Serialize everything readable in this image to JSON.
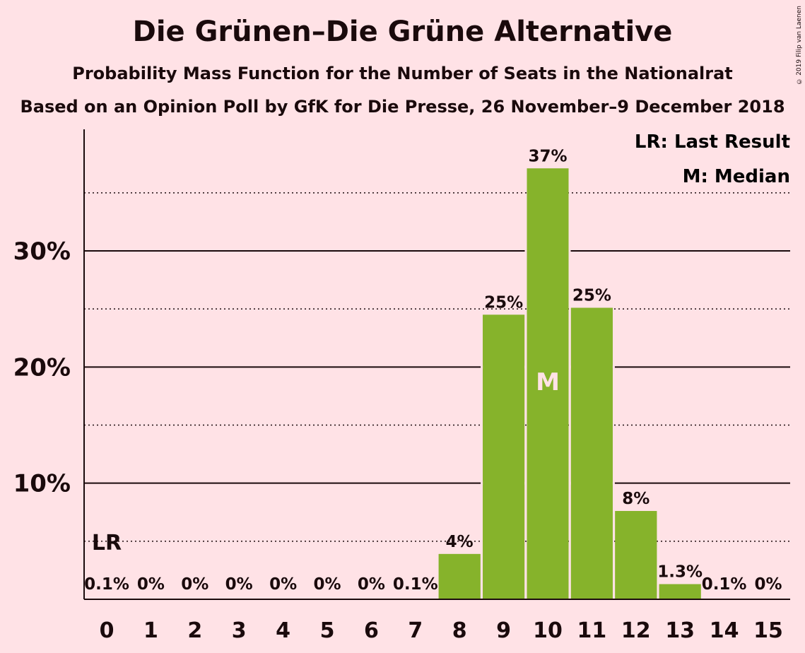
{
  "title": "Die Grünen–Die Grüne Alternative",
  "subtitle": "Probability Mass Function for the Number of Seats in the Nationalrat",
  "subtitle2": "Based on an Opinion Poll by GfK for Die Presse, 26 November–9 December 2018",
  "copyright": "© 2019 Filip van Laenen",
  "legend": {
    "last_result": "LR: Last Result",
    "median": "M: Median"
  },
  "colors": {
    "bar": "#86B32B",
    "background": "#FFE2E6",
    "text": "#1a0a0c",
    "median_marker": "#FFE2E6"
  },
  "chart_data": {
    "type": "bar",
    "categories": [
      "0",
      "1",
      "2",
      "3",
      "4",
      "5",
      "6",
      "7",
      "8",
      "9",
      "10",
      "11",
      "12",
      "13",
      "14",
      "15"
    ],
    "values": [
      0.1,
      0,
      0,
      0,
      0,
      0,
      0,
      0.1,
      3.9,
      24.5,
      37.1,
      25.1,
      7.6,
      1.3,
      0.1,
      0
    ],
    "data_labels": [
      "0.1%",
      "0%",
      "0%",
      "0%",
      "0%",
      "0%",
      "0%",
      "0.1%",
      "4%",
      "25%",
      "37%",
      "25%",
      "8%",
      "1.3%",
      "0.1%",
      "0%"
    ],
    "ylim": [
      0,
      40
    ],
    "yticks": [
      10,
      20,
      30
    ],
    "ytick_labels": [
      "10%",
      "20%",
      "30%"
    ],
    "minor_gridlines": [
      5,
      15,
      25,
      35
    ],
    "grid": true,
    "legend_position": "top-right",
    "last_result_seat": 0,
    "last_result_label": "LR",
    "median_seat": 10,
    "median_label": "M"
  }
}
